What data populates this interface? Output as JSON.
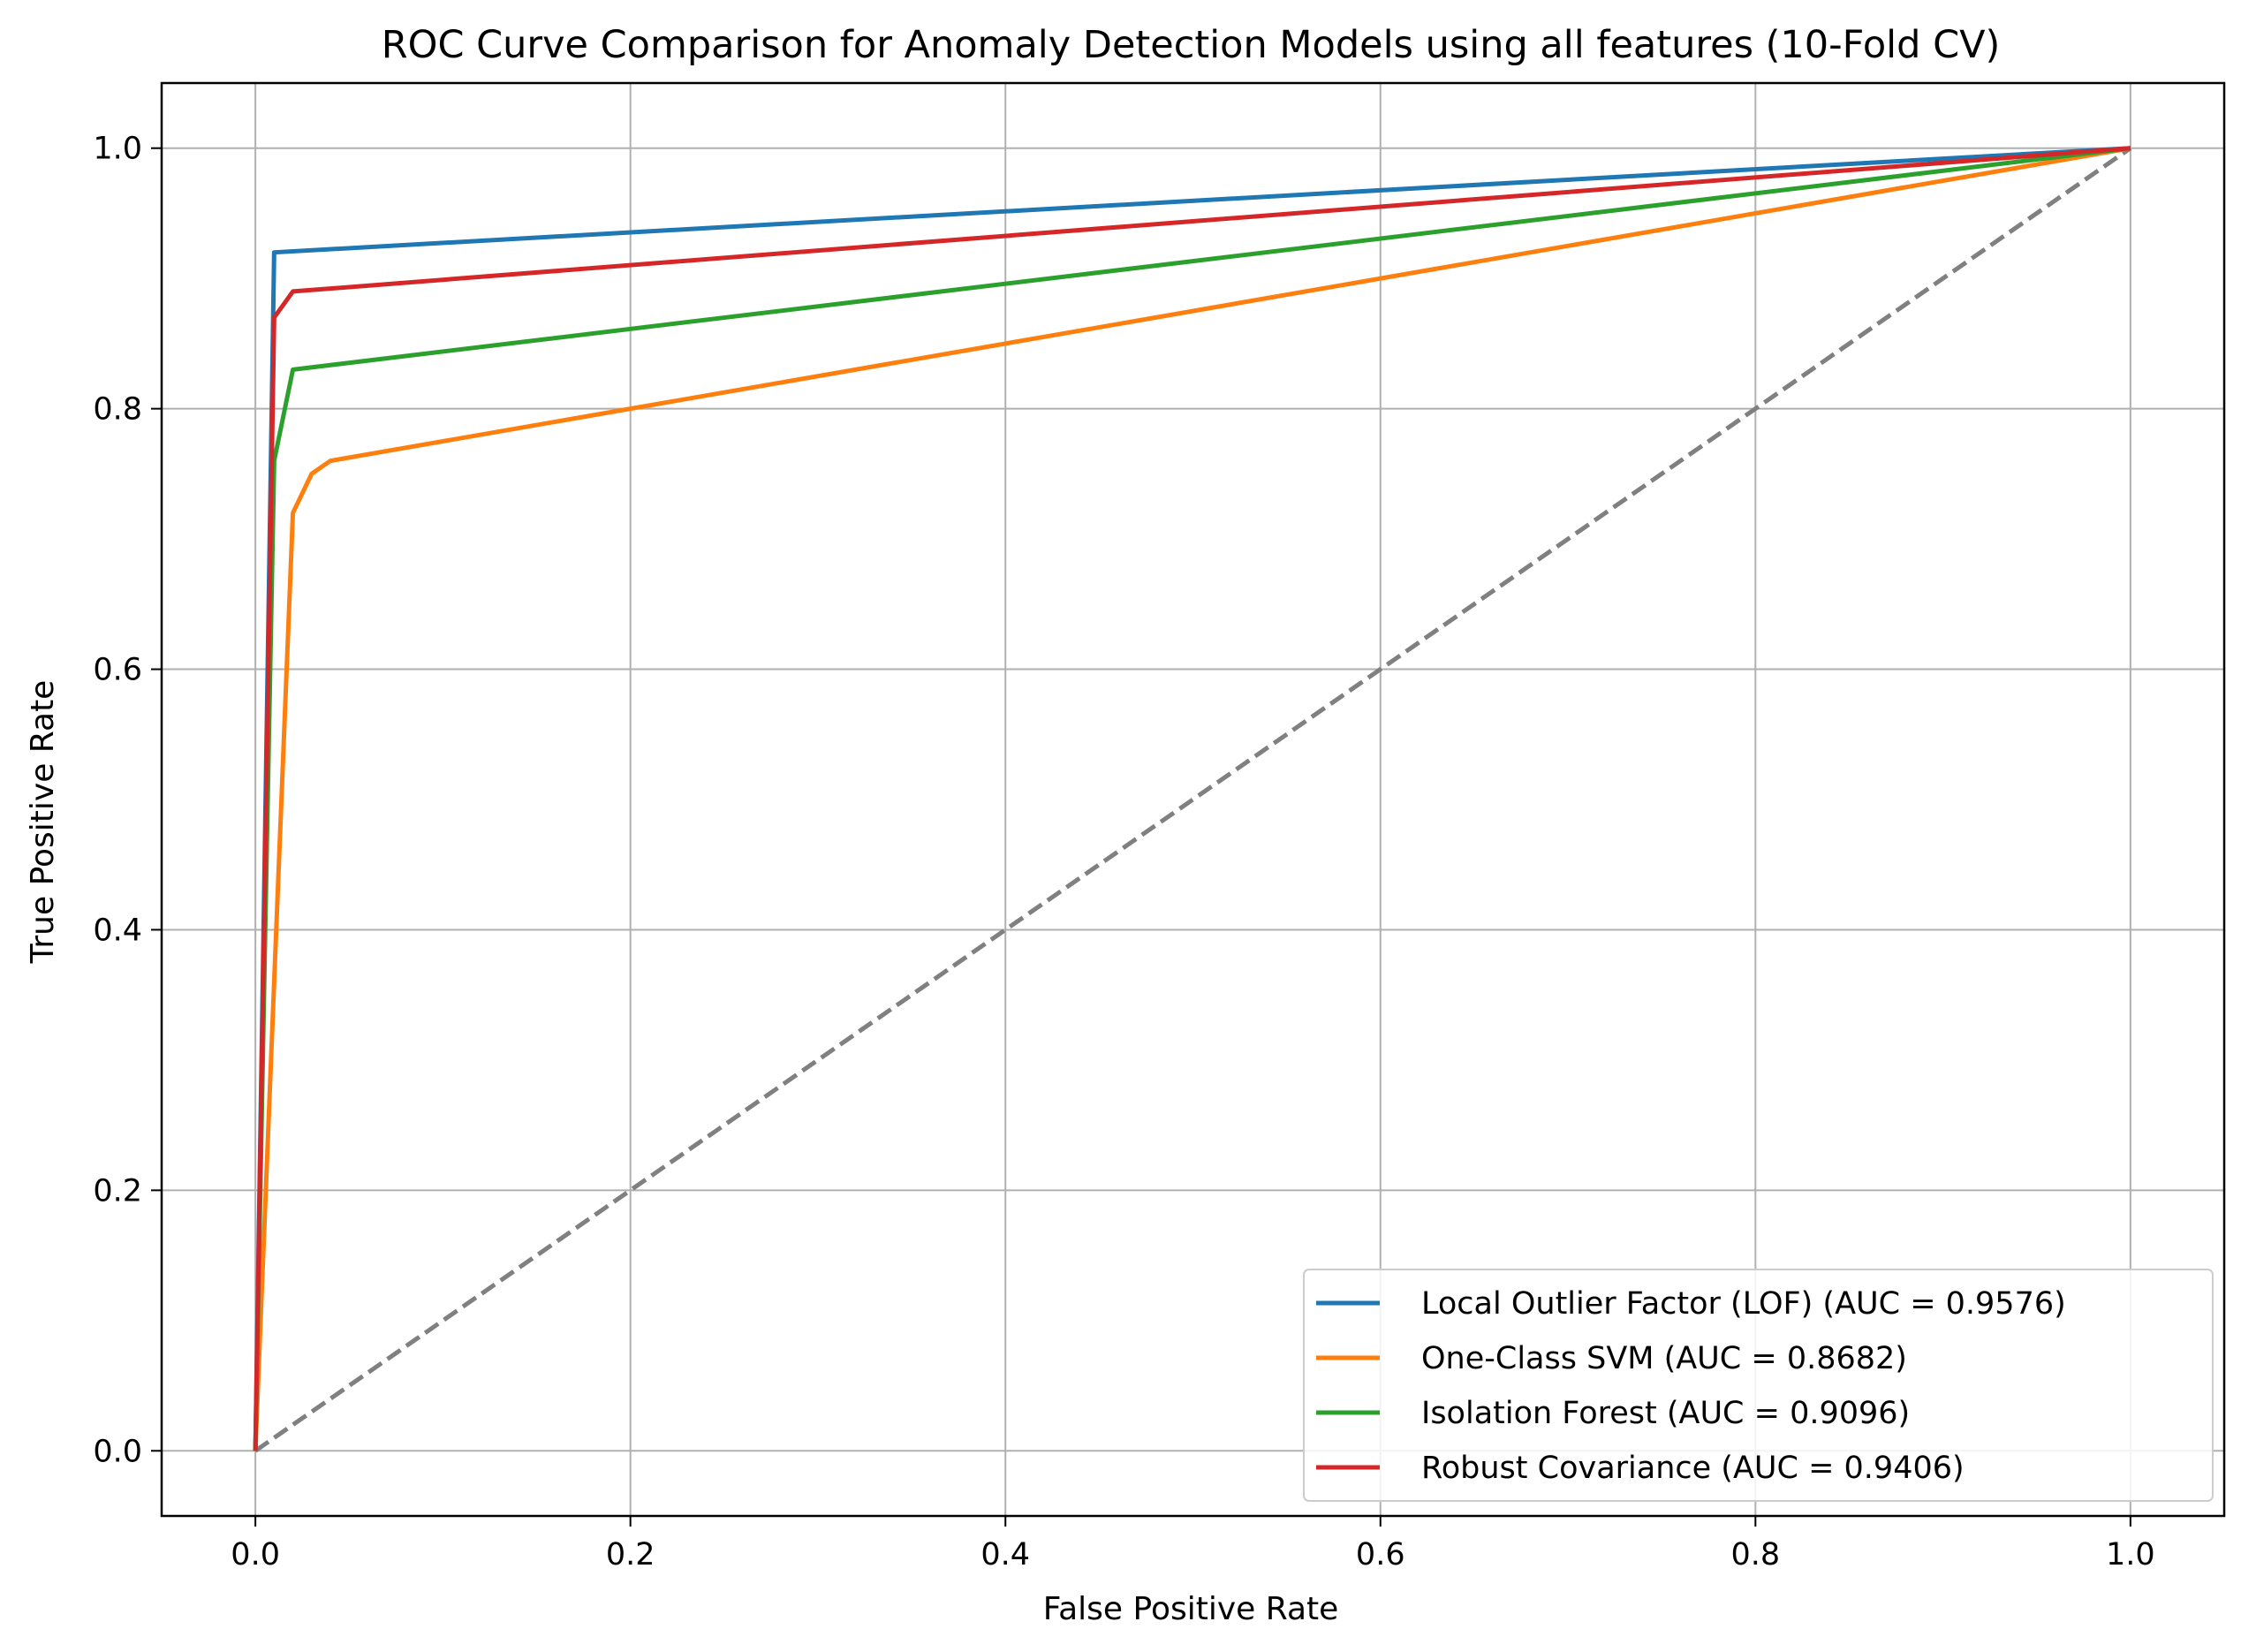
{
  "chart_data": {
    "type": "line",
    "title": "ROC Curve Comparison for Anomaly Detection Models using all features (10-Fold CV)",
    "xlabel": "False Positive Rate",
    "ylabel": "True Positive Rate",
    "xlim": [
      -0.05,
      1.05
    ],
    "ylim": [
      -0.05,
      1.05
    ],
    "xticks": [
      0.0,
      0.2,
      0.4,
      0.6,
      0.8,
      1.0
    ],
    "yticks": [
      0.0,
      0.2,
      0.4,
      0.6,
      0.8,
      1.0
    ],
    "xtick_labels": [
      "0.0",
      "0.2",
      "0.4",
      "0.6",
      "0.8",
      "1.0"
    ],
    "ytick_labels": [
      "0.0",
      "0.2",
      "0.4",
      "0.6",
      "0.8",
      "1.0"
    ],
    "grid": true,
    "legend_position": "bottom-right",
    "series": [
      {
        "name": "Local Outlier Factor (LOF) (AUC = 0.9576)",
        "color": "#1f77b4",
        "points": [
          [
            0.0,
            0.0
          ],
          [
            0.01,
            0.92
          ],
          [
            1.0,
            1.0
          ]
        ]
      },
      {
        "name": "One-Class SVM (AUC = 0.8682)",
        "color": "#ff7f0e",
        "points": [
          [
            0.0,
            0.0
          ],
          [
            0.02,
            0.72
          ],
          [
            0.03,
            0.75
          ],
          [
            0.04,
            0.76
          ],
          [
            1.0,
            1.0
          ]
        ]
      },
      {
        "name": "Isolation Forest (AUC = 0.9096)",
        "color": "#2ca02c",
        "points": [
          [
            0.0,
            0.0
          ],
          [
            0.01,
            0.76
          ],
          [
            0.02,
            0.83
          ],
          [
            1.0,
            1.0
          ]
        ]
      },
      {
        "name": "Robust Covariance (AUC = 0.9406)",
        "color": "#d62728",
        "points": [
          [
            0.0,
            0.0
          ],
          [
            0.01,
            0.87
          ],
          [
            0.02,
            0.89
          ],
          [
            1.0,
            1.0
          ]
        ]
      }
    ],
    "reference_line": {
      "color": "#808080",
      "style": "dashed",
      "points": [
        [
          0.0,
          0.0
        ],
        [
          1.0,
          1.0
        ]
      ]
    }
  }
}
